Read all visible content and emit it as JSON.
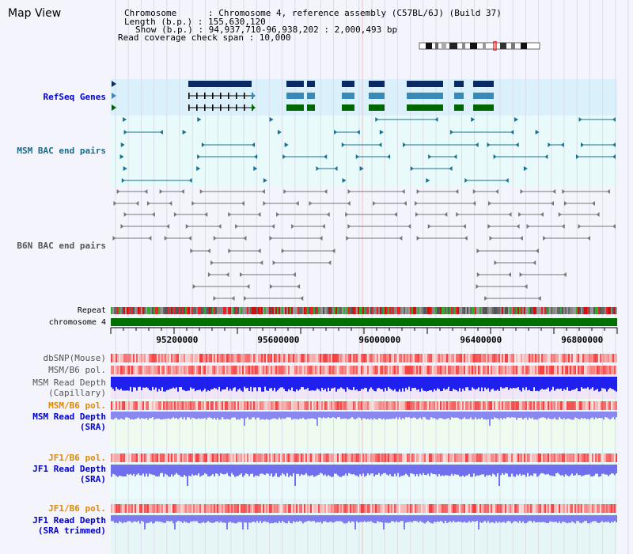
{
  "app": {
    "title": "Map View"
  },
  "info": {
    "chromosome": "Chromosome      : Chromosome 4, reference assembly (C57BL/6J) (Build 37)",
    "length": "Length (b.p.) : 155,630,120",
    "show": "Show (b.p.) : 94,937,710-96,938,202 : 2,000,493 bp",
    "read_span": "Read coverage check span : 10,000"
  },
  "tracks": {
    "refseq": "RefSeq Genes",
    "msm_bac": "MSM BAC end pairs",
    "b6n_bac": "B6N BAC end pairs",
    "repeat": "Repeat",
    "chromosome": "chromosome 4",
    "dbsnp": "dbSNP(Mouse)",
    "msm_b6_pol_1": "MSM/B6 pol.",
    "msm_cap_1": "MSM Read Depth",
    "msm_cap_2": "(Capillary)",
    "msm_b6_pol_2": "MSM/B6 pol.",
    "msm_sra_1": "MSM Read Depth",
    "msm_sra_2": "(SRA)",
    "jf1_b6_pol_1": "JF1/B6 pol.",
    "jf1_sra_1": "JF1 Read Depth",
    "jf1_sra_2": "(SRA)",
    "jf1_b6_pol_2": "JF1/B6 pol.",
    "jf1_trim_1": "JF1 Read Depth",
    "jf1_trim_2": "(SRA trimmed)"
  },
  "axis": {
    "ticks": [
      {
        "label": "95200000",
        "value": 95200000
      },
      {
        "label": "95600000",
        "value": 95600000
      },
      {
        "label": "96000000",
        "value": 96000000
      },
      {
        "label": "96400000",
        "value": 96400000
      },
      {
        "label": "96800000",
        "value": 96800000
      }
    ],
    "range": [
      94937710,
      96938202
    ]
  },
  "colors": {
    "refseq_label": "#0000cc",
    "msm_label": "#1a6a8a",
    "b6n_label": "#555555",
    "pol_label": "#e08a00",
    "depth_label": "#0000cc",
    "gene_dark": "#0a2a66",
    "gene_mid": "#3a8ab8",
    "gene_green": "#006600",
    "chromosome_bar": "#007000"
  }
}
